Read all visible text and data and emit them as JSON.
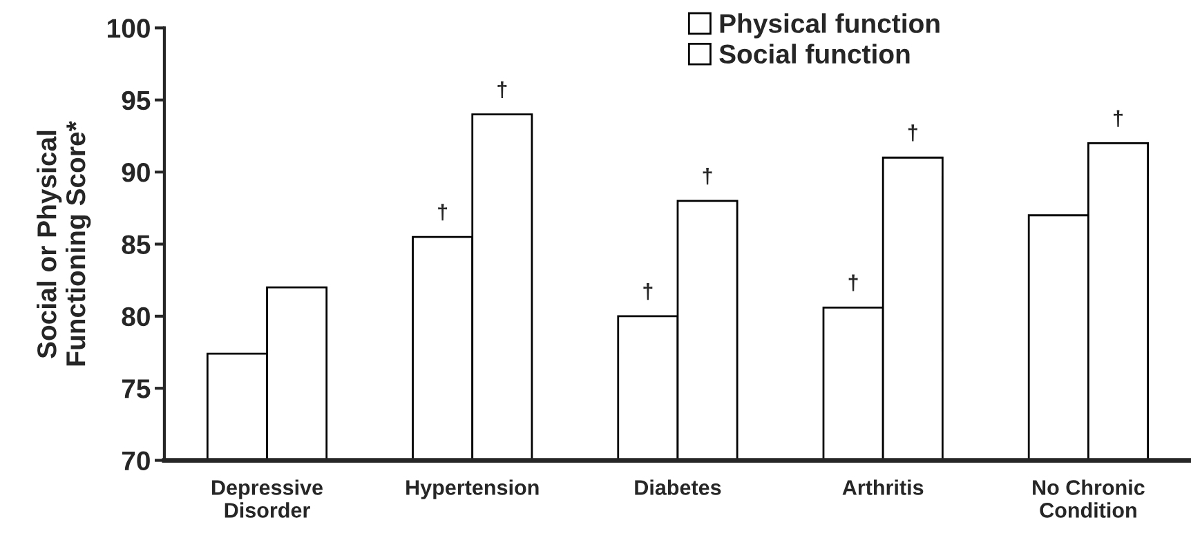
{
  "chart_data": {
    "type": "bar",
    "ylabel": "Social or Physical\nFunctioning Score*",
    "categories": [
      "Depressive\nDisorder",
      "Hypertension",
      "Diabetes",
      "Arthritis",
      "No Chronic\nCondition"
    ],
    "series": [
      {
        "name": "Physical function",
        "color": "#ffffff",
        "values": [
          77.4,
          85.5,
          80.0,
          80.6,
          87.0
        ],
        "value_labels": [
          null,
          "†",
          "†",
          "†",
          null
        ]
      },
      {
        "name": "Social function",
        "color": "#ffffff",
        "values": [
          82.0,
          94.0,
          88.0,
          91.0,
          92.0
        ],
        "value_labels": [
          null,
          "†",
          "†",
          "†",
          "†"
        ]
      }
    ],
    "ylim": [
      70,
      100
    ],
    "yticks": [
      70,
      75,
      80,
      85,
      90,
      95,
      100
    ],
    "grid": false,
    "legend": "top right"
  }
}
